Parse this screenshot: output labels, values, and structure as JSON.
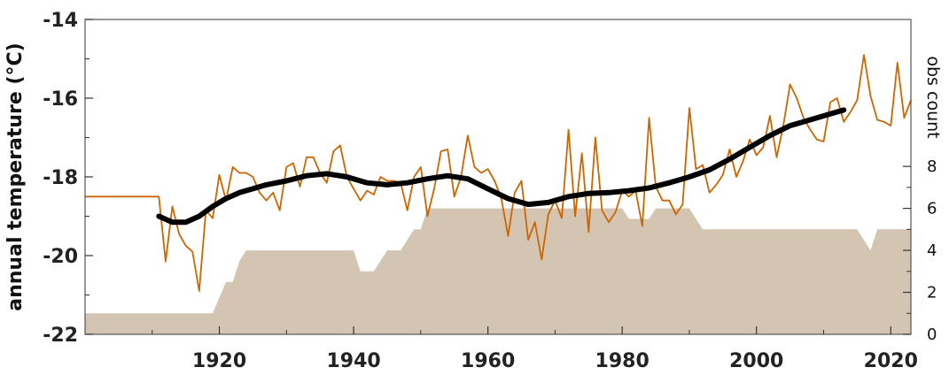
{
  "chart_data": {
    "type": "line",
    "title": "",
    "xlabel": "",
    "ylabel": "annual temperature (°C)",
    "y2label": "obs count",
    "xlim": [
      1900,
      2023
    ],
    "ylim": [
      -22,
      -14
    ],
    "y2lim": [
      0,
      15
    ],
    "x_ticks": [
      1920,
      1940,
      1960,
      1980,
      2000,
      2020
    ],
    "y_ticks": [
      -22,
      -20,
      -18,
      -16,
      -14
    ],
    "y2_ticks": [
      0,
      2,
      4,
      6,
      8
    ],
    "grid": false,
    "colors": {
      "annual": "#cc6600",
      "smooth": "#000000",
      "count": "#d4c5b3"
    },
    "series": [
      {
        "key": "annual",
        "x": [
          1900,
          1911,
          1912,
          1913,
          1914,
          1915,
          1916,
          1917,
          1918,
          1919,
          1920,
          1921,
          1922,
          1923,
          1924,
          1925,
          1926,
          1927,
          1928,
          1929,
          1930,
          1931,
          1932,
          1933,
          1934,
          1935,
          1936,
          1937,
          1938,
          1939,
          1940,
          1941,
          1942,
          1943,
          1944,
          1945,
          1946,
          1947,
          1948,
          1949,
          1950,
          1951,
          1952,
          1953,
          1954,
          1955,
          1956,
          1957,
          1958,
          1959,
          1960,
          1961,
          1962,
          1963,
          1964,
          1965,
          1966,
          1967,
          1968,
          1969,
          1970,
          1971,
          1972,
          1973,
          1974,
          1975,
          1976,
          1977,
          1978,
          1979,
          1980,
          1981,
          1982,
          1983,
          1984,
          1985,
          1986,
          1987,
          1988,
          1989,
          1990,
          1991,
          1992,
          1993,
          1994,
          1995,
          1996,
          1997,
          1998,
          1999,
          2000,
          2001,
          2002,
          2003,
          2004,
          2005,
          2006,
          2007,
          2008,
          2009,
          2010,
          2011,
          2012,
          2013,
          2014,
          2015,
          2016,
          2017,
          2018,
          2019,
          2020,
          2021,
          2022,
          2023
        ],
        "values": [
          -18.5,
          -18.5,
          -20.15,
          -18.75,
          -19.45,
          -19.75,
          -19.9,
          -20.9,
          -18.85,
          -19.05,
          -17.95,
          -18.6,
          -17.75,
          -17.9,
          -17.9,
          -18.0,
          -18.4,
          -18.6,
          -18.4,
          -18.85,
          -17.75,
          -17.65,
          -18.25,
          -17.5,
          -17.5,
          -17.9,
          -18.15,
          -17.35,
          -17.2,
          -18.0,
          -18.3,
          -18.6,
          -18.35,
          -18.45,
          -18.0,
          -18.1,
          -18.1,
          -18.15,
          -18.85,
          -18.0,
          -17.75,
          -19.0,
          -18.3,
          -17.35,
          -17.3,
          -18.5,
          -18.0,
          -16.95,
          -17.75,
          -17.9,
          -17.8,
          -18.1,
          -18.55,
          -19.5,
          -18.4,
          -18.1,
          -19.6,
          -19.15,
          -20.1,
          -18.95,
          -18.6,
          -19.05,
          -16.8,
          -19.0,
          -17.4,
          -19.4,
          -17.0,
          -18.85,
          -19.15,
          -18.9,
          -18.35,
          -18.5,
          -18.35,
          -19.25,
          -16.5,
          -18.25,
          -18.6,
          -18.6,
          -18.95,
          -18.7,
          -16.25,
          -17.8,
          -17.7,
          -18.4,
          -18.2,
          -17.95,
          -17.3,
          -18.0,
          -17.6,
          -17.05,
          -17.45,
          -17.25,
          -16.45,
          -17.5,
          -16.7,
          -15.65,
          -16.0,
          -16.5,
          -16.8,
          -17.05,
          -17.1,
          -16.1,
          -16.0,
          -16.6,
          -16.35,
          -16.05,
          -14.9,
          -15.95,
          -16.55,
          -16.6,
          -16.7,
          -15.1,
          -16.5,
          -16.05
        ]
      },
      {
        "key": "smooth",
        "x": [
          1911,
          1913,
          1915,
          1917,
          1919,
          1921,
          1923,
          1925,
          1927,
          1930,
          1933,
          1936,
          1939,
          1942,
          1945,
          1948,
          1951,
          1954,
          1957,
          1960,
          1963,
          1966,
          1969,
          1972,
          1975,
          1978,
          1981,
          1984,
          1987,
          1990,
          1993,
          1996,
          1999,
          2002,
          2005,
          2008,
          2011,
          2013
        ],
        "values": [
          -19.0,
          -19.15,
          -19.15,
          -19.0,
          -18.75,
          -18.55,
          -18.4,
          -18.3,
          -18.2,
          -18.1,
          -17.97,
          -17.92,
          -18.0,
          -18.15,
          -18.2,
          -18.15,
          -18.05,
          -17.97,
          -18.05,
          -18.3,
          -18.55,
          -18.7,
          -18.65,
          -18.5,
          -18.42,
          -18.4,
          -18.35,
          -18.28,
          -18.15,
          -18.0,
          -17.82,
          -17.55,
          -17.25,
          -16.95,
          -16.7,
          -16.55,
          -16.4,
          -16.3
        ]
      },
      {
        "key": "count",
        "axis": "right",
        "x": [
          1900,
          1919,
          1921,
          1922,
          1923,
          1924,
          1940,
          1941,
          1943,
          1944,
          1945,
          1947,
          1948,
          1949,
          1950,
          1951,
          1979,
          1980,
          1981,
          1983,
          1984,
          1985,
          1990,
          1991,
          1992,
          2015,
          2016,
          2017,
          2018,
          2023
        ],
        "values": [
          1,
          1,
          2.5,
          2.5,
          3.5,
          4,
          4,
          3,
          3,
          3.5,
          4,
          4,
          4.5,
          5,
          5,
          6,
          6,
          6,
          5.5,
          5.5,
          5.5,
          6,
          6,
          5.5,
          5,
          5,
          4.5,
          4,
          5,
          5
        ]
      }
    ]
  }
}
